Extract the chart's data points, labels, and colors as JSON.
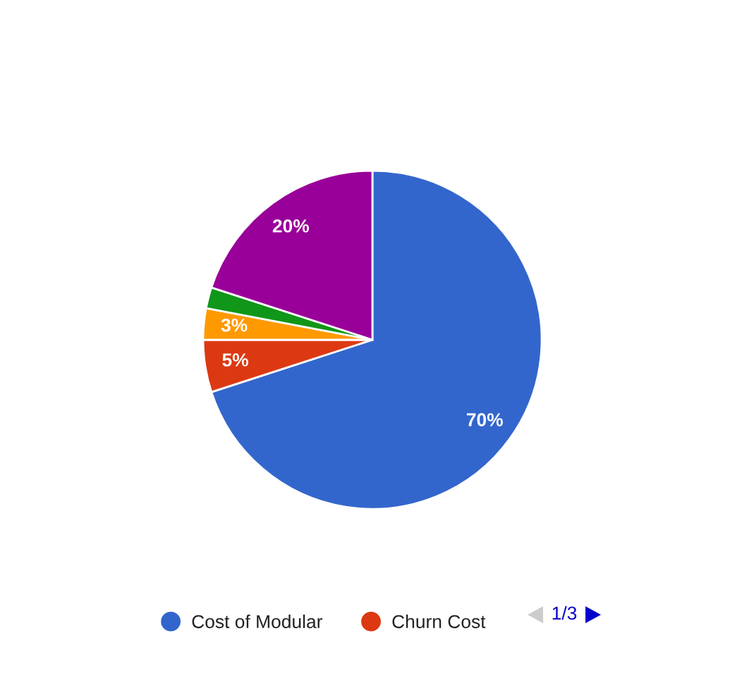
{
  "chart_data": {
    "type": "pie",
    "categories": [
      "Cost of Modular",
      "Churn Cost",
      null,
      null,
      null
    ],
    "values": [
      70,
      5,
      3,
      2,
      20
    ],
    "colors": [
      "#3366cc",
      "#dc3912",
      "#ff9900",
      "#109618",
      "#990099"
    ],
    "value_labels": [
      "70%",
      "5%",
      "3%",
      null,
      "20%"
    ],
    "legend": "bottom",
    "annotations": [
      "1/3"
    ]
  }
}
